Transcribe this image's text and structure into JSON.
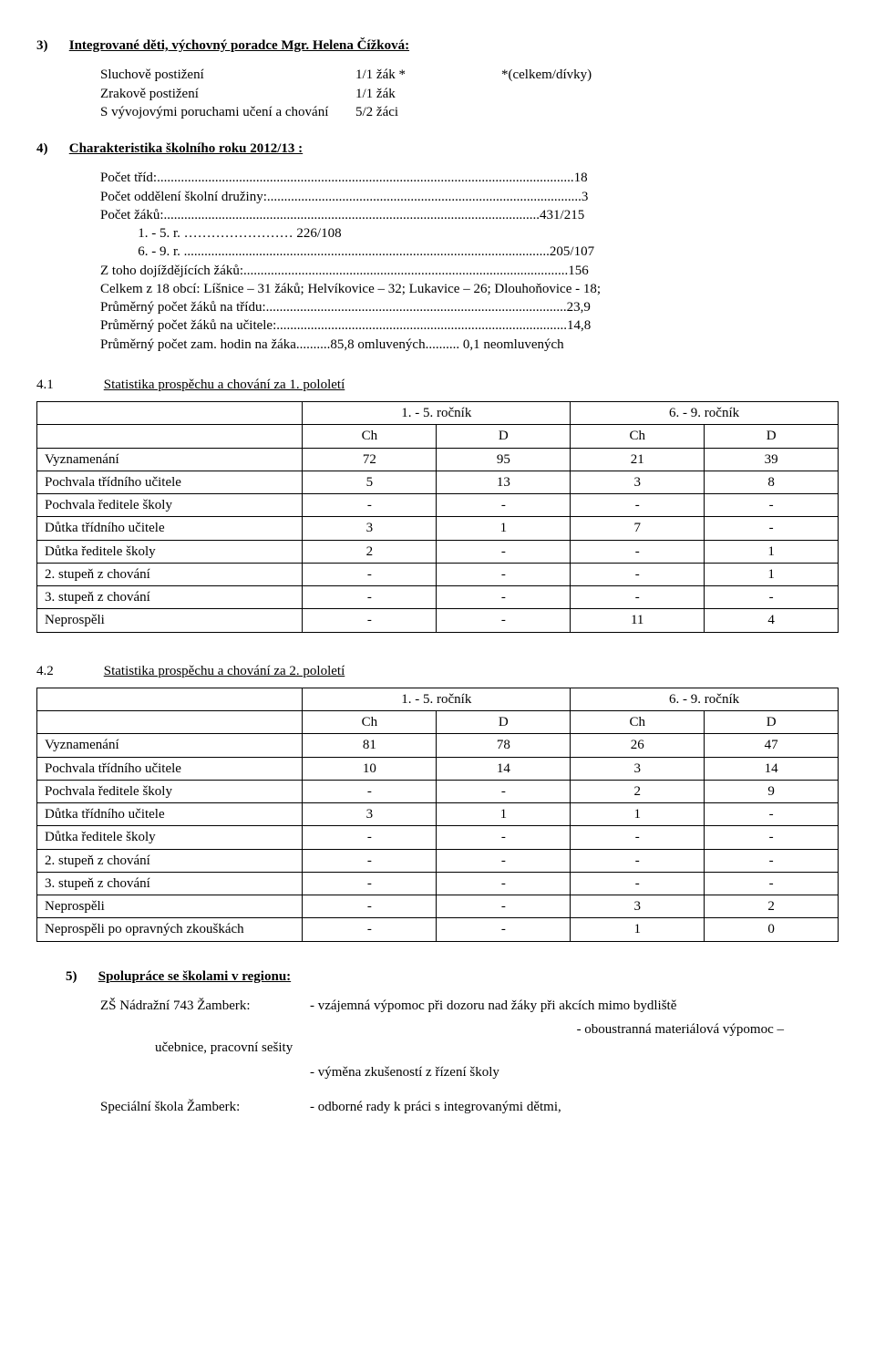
{
  "s3": {
    "num": "3)",
    "title": "Integrované děti, výchovný poradce Mgr. Helena Čížková:",
    "lines": [
      {
        "label": "Sluchově postižení",
        "val": "1/1 žák  *",
        "right": "*(celkem/dívky)"
      },
      {
        "label": "Zrakově postižení",
        "val": "1/1 žák",
        "right": ""
      },
      {
        "label": "S vývojovými poruchami učení a chování",
        "val": "5/2 žáci",
        "right": ""
      }
    ]
  },
  "s4": {
    "num": "4)",
    "title": "Charakteristika školního roku 2012/13 :",
    "stats": [
      "Počet tříd:..........................................................................................................................18",
      "Počet oddělení školní družiny:............................................................................................3",
      "Počet žáků:..............................................................................................................431/215",
      "           1. - 5. r. …………………… 226/108",
      "           6. - 9. r. ...........................................................................................................205/107",
      "Z toho dojíždějících žáků:...............................................................................................156",
      "Celkem z 18 obcí: Líšnice – 31 žáků; Helvíkovice – 32; Lukavice – 26; Dlouhoňovice - 18;",
      "Průměrný počet žáků na třídu:........................................................................................23,9",
      "Průměrný počet žáků na učitele:.....................................................................................14,8",
      "Průměrný počet zam. hodin na žáka..........85,8  omluvených..........     0,1  neomluvených"
    ]
  },
  "t41": {
    "num": "4.1",
    "title": "Statistika prospěchu a chování za 1. pololetí",
    "head1": [
      "1. - 5. ročník",
      "6. - 9. ročník"
    ],
    "head2": [
      "Ch",
      "D",
      "Ch",
      "D"
    ],
    "rows": [
      {
        "label": "Vyznamenání",
        "v": [
          "72",
          "95",
          "21",
          "39"
        ]
      },
      {
        "label": "Pochvala třídního učitele",
        "v": [
          "5",
          "13",
          "3",
          "8"
        ]
      },
      {
        "label": "Pochvala ředitele školy",
        "v": [
          "-",
          "-",
          "-",
          "-"
        ]
      },
      {
        "label": "Důtka třídního učitele",
        "v": [
          "3",
          "1",
          "7",
          "-"
        ]
      },
      {
        "label": "Důtka ředitele školy",
        "v": [
          "2",
          "-",
          "-",
          "1"
        ]
      },
      {
        "label": "2. stupeň z chování",
        "v": [
          "-",
          "-",
          "-",
          "1"
        ]
      },
      {
        "label": "3. stupeň z chování",
        "v": [
          "-",
          "-",
          "-",
          "-"
        ]
      },
      {
        "label": "Neprospěli",
        "v": [
          "-",
          "-",
          "11",
          "4"
        ]
      }
    ]
  },
  "t42": {
    "num": "4.2",
    "title": "Statistika prospěchu a chování za 2. pololetí",
    "head1": [
      "1. - 5. ročník",
      "6. - 9. ročník"
    ],
    "head2": [
      "Ch",
      "D",
      "Ch",
      "D"
    ],
    "rows": [
      {
        "label": "Vyznamenání",
        "v": [
          "81",
          "78",
          "26",
          "47"
        ]
      },
      {
        "label": "Pochvala třídního učitele",
        "v": [
          "10",
          "14",
          "3",
          "14"
        ]
      },
      {
        "label": "Pochvala ředitele školy",
        "v": [
          "-",
          "-",
          "2",
          "9"
        ]
      },
      {
        "label": "Důtka třídního učitele",
        "v": [
          "3",
          "1",
          "1",
          "-"
        ]
      },
      {
        "label": "Důtka ředitele školy",
        "v": [
          "-",
          "-",
          "-",
          "-"
        ]
      },
      {
        "label": "2. stupeň z chování",
        "v": [
          "-",
          "-",
          "-",
          "-"
        ]
      },
      {
        "label": "3. stupeň z chování",
        "v": [
          "-",
          "-",
          "-",
          "-"
        ]
      },
      {
        "label": "Neprospěli",
        "v": [
          "-",
          "-",
          "3",
          "2"
        ]
      },
      {
        "label": "Neprospěli po opravných zkouškách",
        "v": [
          "-",
          "-",
          "1",
          "0"
        ]
      }
    ]
  },
  "s5": {
    "num": "5)",
    "title": "Spolupráce se školami v regionu:",
    "blocks": [
      {
        "school": "ZŠ Nádražní 743 Žamberk:",
        "indent_line": "učebnice, pracovní sešity",
        "lines": [
          "- vzájemná výpomoc při dozoru nad žáky při akcích mimo bydliště",
          "- oboustranná materiálová výpomoc –",
          "- výměna zkušeností z řízení školy"
        ]
      },
      {
        "school": "Speciální škola Žamberk:",
        "indent_line": "",
        "lines": [
          "- odborné rady k práci s integrovanými dětmi,"
        ]
      }
    ]
  },
  "style": {
    "font": "Times New Roman",
    "font_size_pt": 12,
    "page_bg": "#ffffff",
    "text_color": "#000000",
    "table_border_color": "#000000",
    "colwidths": {
      "label": 300,
      "num": 145
    }
  }
}
